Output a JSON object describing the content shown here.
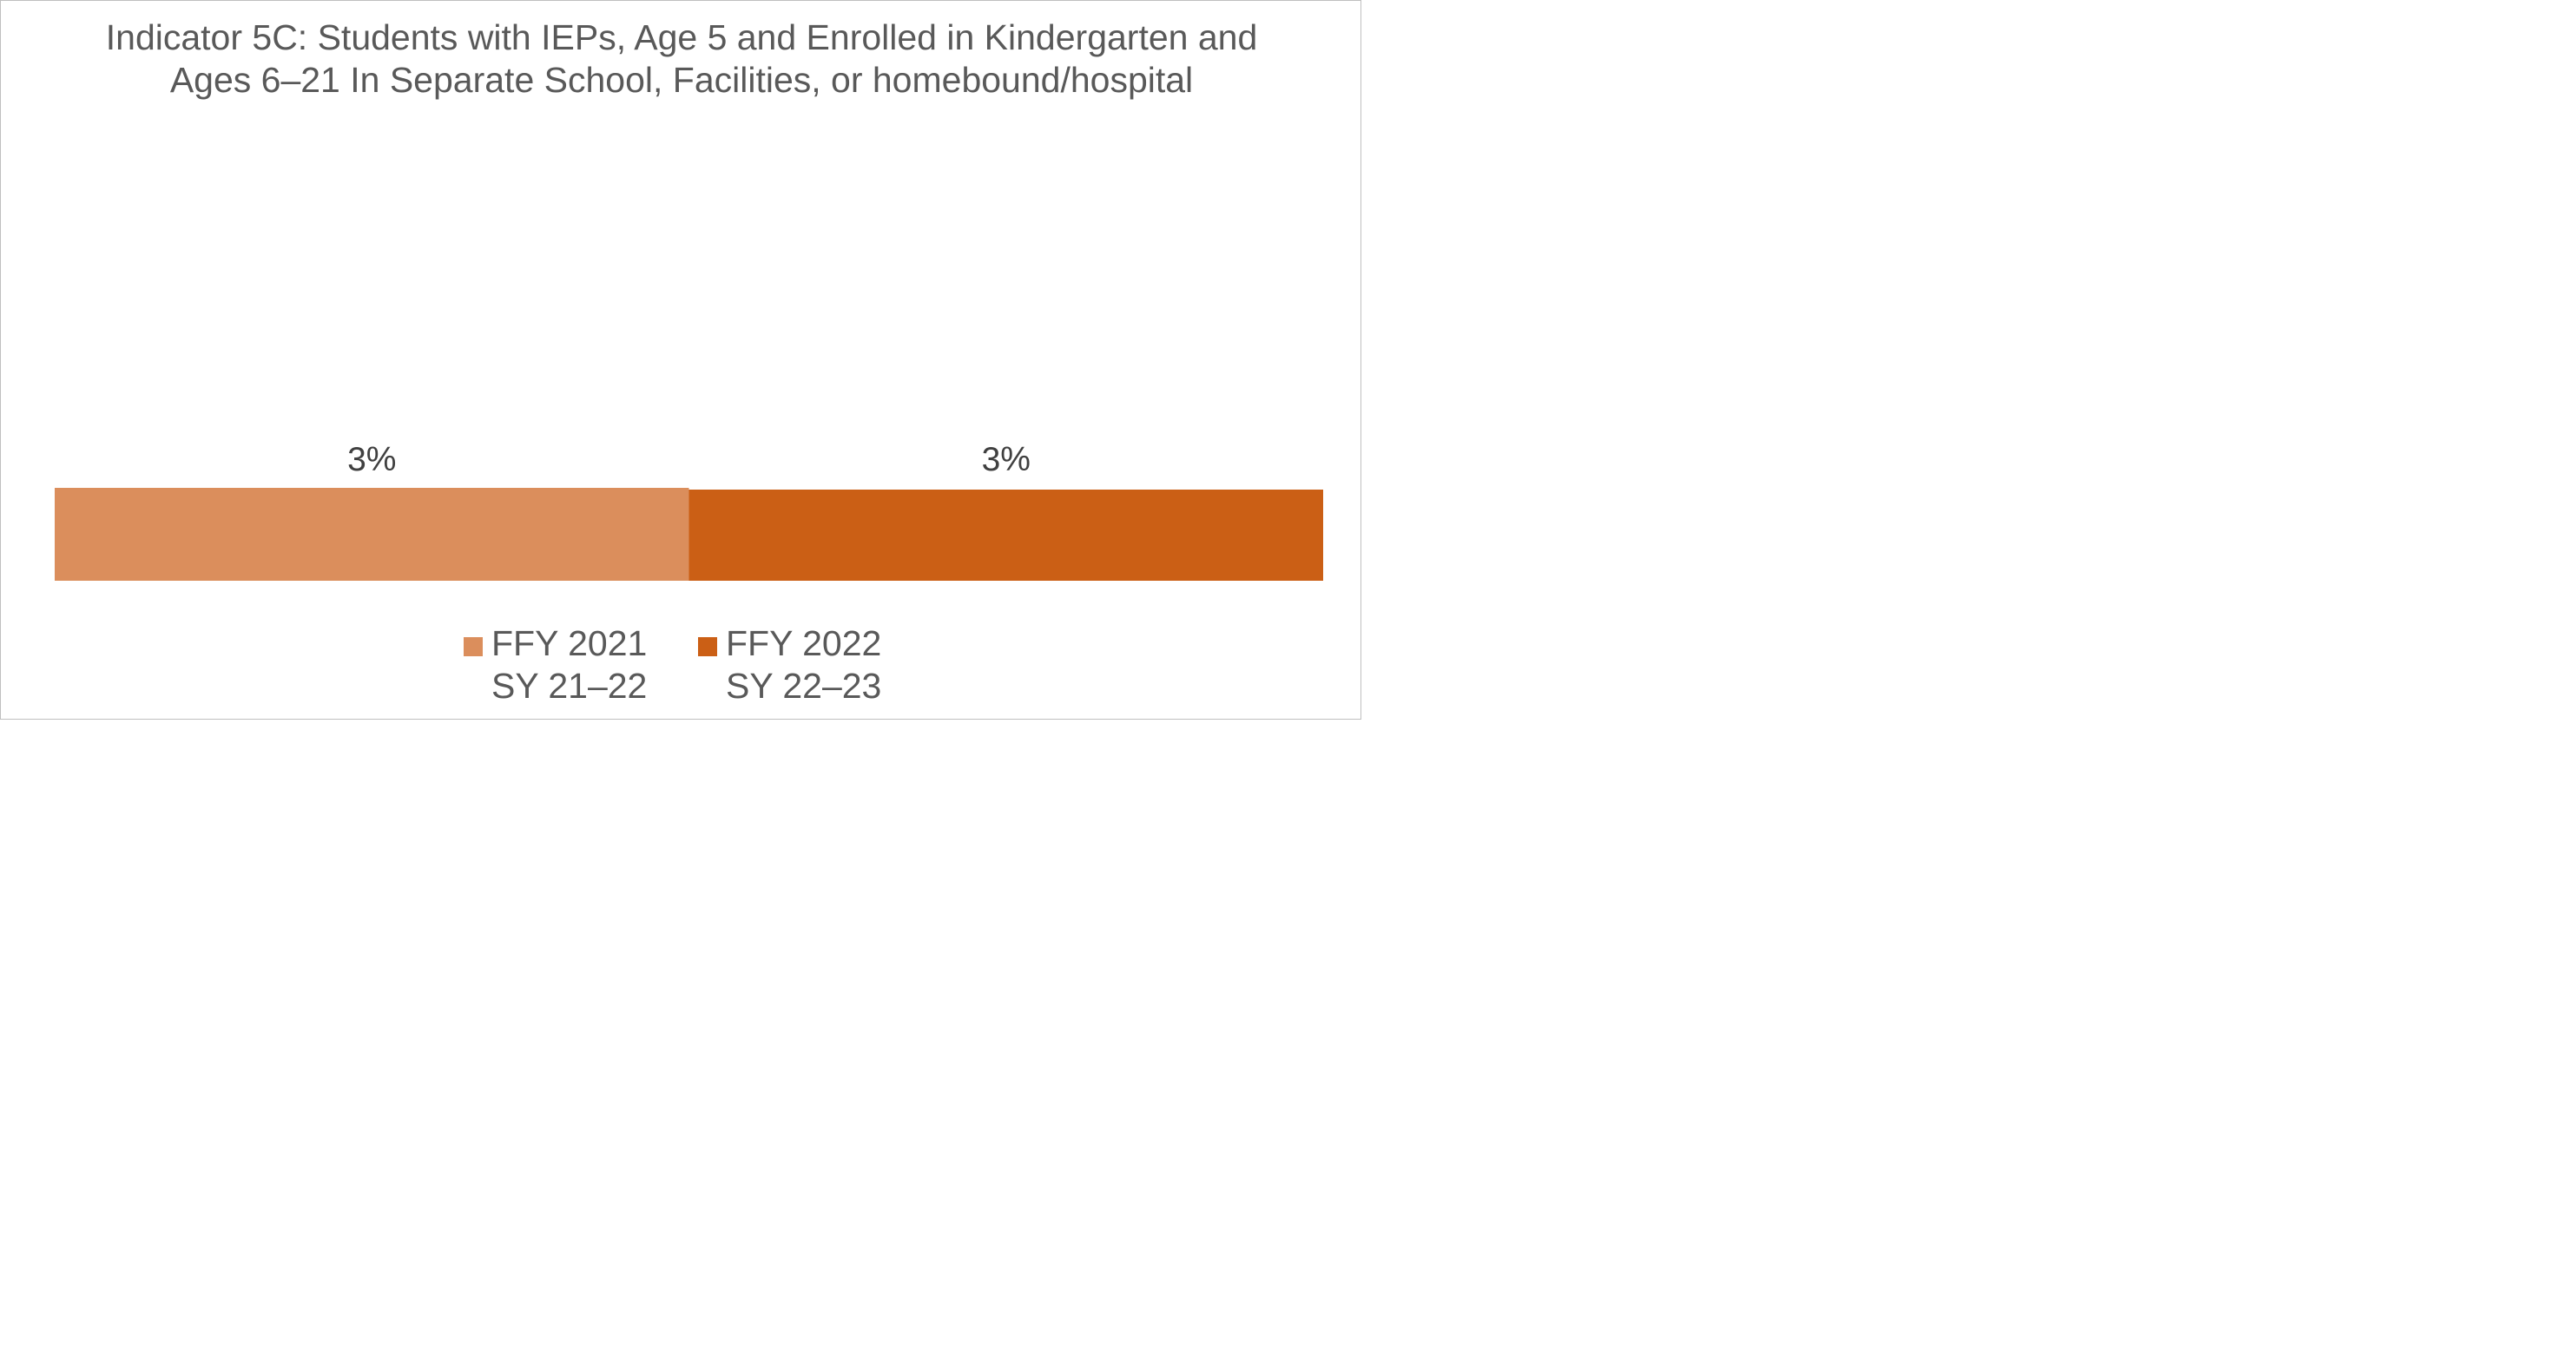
{
  "chart_data": {
    "type": "bar",
    "orientation": "horizontal-stacked",
    "title": "Indicator 5C: Students with IEPs, Age 5 and Enrolled in Kindergarten and Ages 6–21 In Separate School, Facilities, or homebound/hospital",
    "categories": [
      ""
    ],
    "series": [
      {
        "name": "FFY 2021 SY 21–22",
        "name_lines": [
          "FFY 2021",
          "SY 21–22"
        ],
        "values": [
          3
        ],
        "label": "3%",
        "color": "#db8e5c"
      },
      {
        "name": "FFY 2022 SY 22–23",
        "name_lines": [
          "FFY 2022",
          "SY 22–23"
        ],
        "values": [
          3
        ],
        "label": "3%",
        "color": "#cb5f15"
      }
    ],
    "unit": "%",
    "xlim": [
      0,
      6
    ],
    "grid": false,
    "legend": "bottom"
  }
}
